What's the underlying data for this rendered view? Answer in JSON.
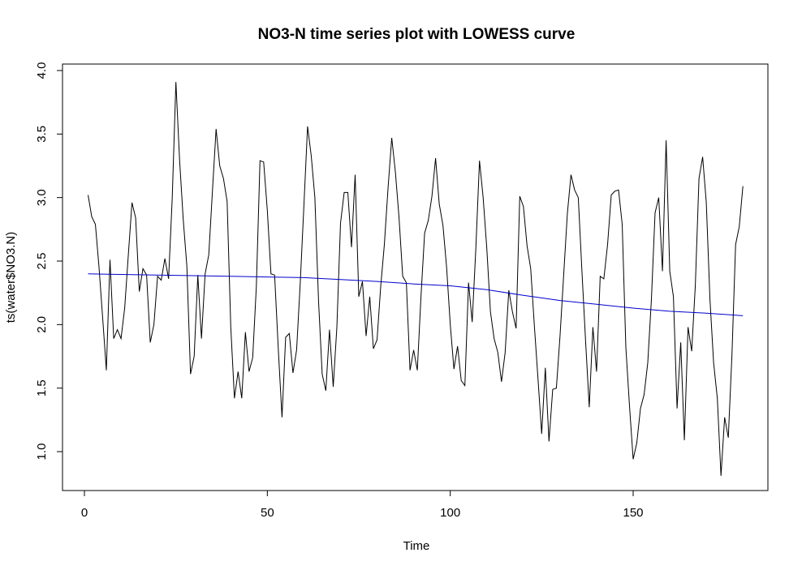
{
  "chart_data": {
    "type": "line",
    "title": "NO3-N time series plot with LOWESS curve",
    "xlabel": "Time",
    "ylabel": "ts(water$NO3.N)",
    "xlim": [
      0,
      180
    ],
    "ylim": [
      1.0,
      4.0
    ],
    "xticks": [
      "0",
      "50",
      "100",
      "150"
    ],
    "yticks": [
      "1.0",
      "1.5",
      "2.0",
      "2.5",
      "3.0",
      "3.5",
      "4.0"
    ],
    "grid": false,
    "legend": "none",
    "series": [
      {
        "color": "#000000",
        "x": [
          1,
          2,
          3,
          4,
          5,
          6,
          7,
          8,
          9,
          10,
          11,
          12,
          13,
          14,
          15,
          16,
          17,
          18,
          19,
          20,
          21,
          22,
          23,
          24,
          25,
          26,
          27,
          28,
          29,
          30,
          31,
          32,
          33,
          34,
          35,
          36,
          37,
          38,
          39,
          40,
          41,
          42,
          43,
          44,
          45,
          46,
          47,
          48,
          49,
          50,
          51,
          52,
          53,
          54,
          55,
          56,
          57,
          58,
          59,
          60,
          61,
          62,
          63,
          64,
          65,
          66,
          67,
          68,
          69,
          70,
          71,
          72,
          73,
          74,
          75,
          76,
          77,
          78,
          79,
          80,
          81,
          82,
          83,
          84,
          85,
          86,
          87,
          88,
          89,
          90,
          91,
          92,
          93,
          94,
          95,
          96,
          97,
          98,
          99,
          100,
          101,
          102,
          103,
          104,
          105,
          106,
          107,
          108,
          109,
          110,
          111,
          112,
          113,
          114,
          115,
          116,
          117,
          118,
          119,
          120,
          121,
          122,
          123,
          124,
          125,
          126,
          127,
          128,
          129,
          130,
          131,
          132,
          133,
          134,
          135,
          136,
          137,
          138,
          139,
          140,
          141,
          142,
          143,
          144,
          145,
          146,
          147,
          148,
          149,
          150,
          151,
          152,
          153,
          154,
          155,
          156,
          157,
          158,
          159,
          160,
          161,
          162,
          163,
          164,
          165,
          166,
          167,
          168,
          169,
          170,
          171,
          172,
          173,
          174,
          175,
          176,
          177,
          178,
          179,
          180
        ],
        "y": [
          3.02,
          2.85,
          2.79,
          2.45,
          2.05,
          1.64,
          2.51,
          1.89,
          1.96,
          1.89,
          2.13,
          2.55,
          2.96,
          2.84,
          2.26,
          2.44,
          2.39,
          1.86,
          2.0,
          2.38,
          2.35,
          2.52,
          2.36,
          3.0,
          3.91,
          3.3,
          2.83,
          2.46,
          1.61,
          1.75,
          2.39,
          1.89,
          2.4,
          2.55,
          3.05,
          3.54,
          3.25,
          3.15,
          2.97,
          1.98,
          1.42,
          1.63,
          1.42,
          1.94,
          1.63,
          1.74,
          2.3,
          3.29,
          3.28,
          2.9,
          2.4,
          2.39,
          1.8,
          1.27,
          1.9,
          1.93,
          1.62,
          1.8,
          2.33,
          2.94,
          3.56,
          3.33,
          3.0,
          2.19,
          1.61,
          1.48,
          1.96,
          1.51,
          1.98,
          2.8,
          3.04,
          3.04,
          2.61,
          3.18,
          2.22,
          2.34,
          1.91,
          2.22,
          1.81,
          1.88,
          2.3,
          2.63,
          3.08,
          3.47,
          3.2,
          2.84,
          2.38,
          2.33,
          1.64,
          1.8,
          1.64,
          2.22,
          2.72,
          2.82,
          3.01,
          3.31,
          2.95,
          2.78,
          2.45,
          2.0,
          1.65,
          1.83,
          1.56,
          1.52,
          2.33,
          2.02,
          2.6,
          3.29,
          3.0,
          2.6,
          2.1,
          1.89,
          1.78,
          1.55,
          1.78,
          2.27,
          2.1,
          1.97,
          3.01,
          2.93,
          2.62,
          2.44,
          1.99,
          1.57,
          1.14,
          1.66,
          1.08,
          1.49,
          1.5,
          1.91,
          2.39,
          2.87,
          3.18,
          3.06,
          3.0,
          2.42,
          1.87,
          1.35,
          1.98,
          1.63,
          2.38,
          2.36,
          2.63,
          3.02,
          3.05,
          3.06,
          2.79,
          1.82,
          1.36,
          0.94,
          1.07,
          1.34,
          1.45,
          1.7,
          2.2,
          2.88,
          3.0,
          2.42,
          3.45,
          2.42,
          2.22,
          1.34,
          1.86,
          1.09,
          1.98,
          1.79,
          2.31,
          3.15,
          3.32,
          2.96,
          2.2,
          1.7,
          1.42,
          0.81,
          1.27,
          1.11,
          1.76,
          2.63,
          2.77,
          3.09
        ]
      },
      {
        "color": "#0000cc",
        "x": [
          1,
          10,
          20,
          30,
          40,
          50,
          60,
          70,
          80,
          90,
          100,
          110,
          120,
          130,
          140,
          150,
          160,
          170,
          180
        ],
        "y": [
          2.4,
          2.395,
          2.39,
          2.385,
          2.38,
          2.375,
          2.37,
          2.355,
          2.34,
          2.32,
          2.305,
          2.275,
          2.23,
          2.19,
          2.16,
          2.13,
          2.105,
          2.09,
          2.07
        ]
      }
    ]
  }
}
